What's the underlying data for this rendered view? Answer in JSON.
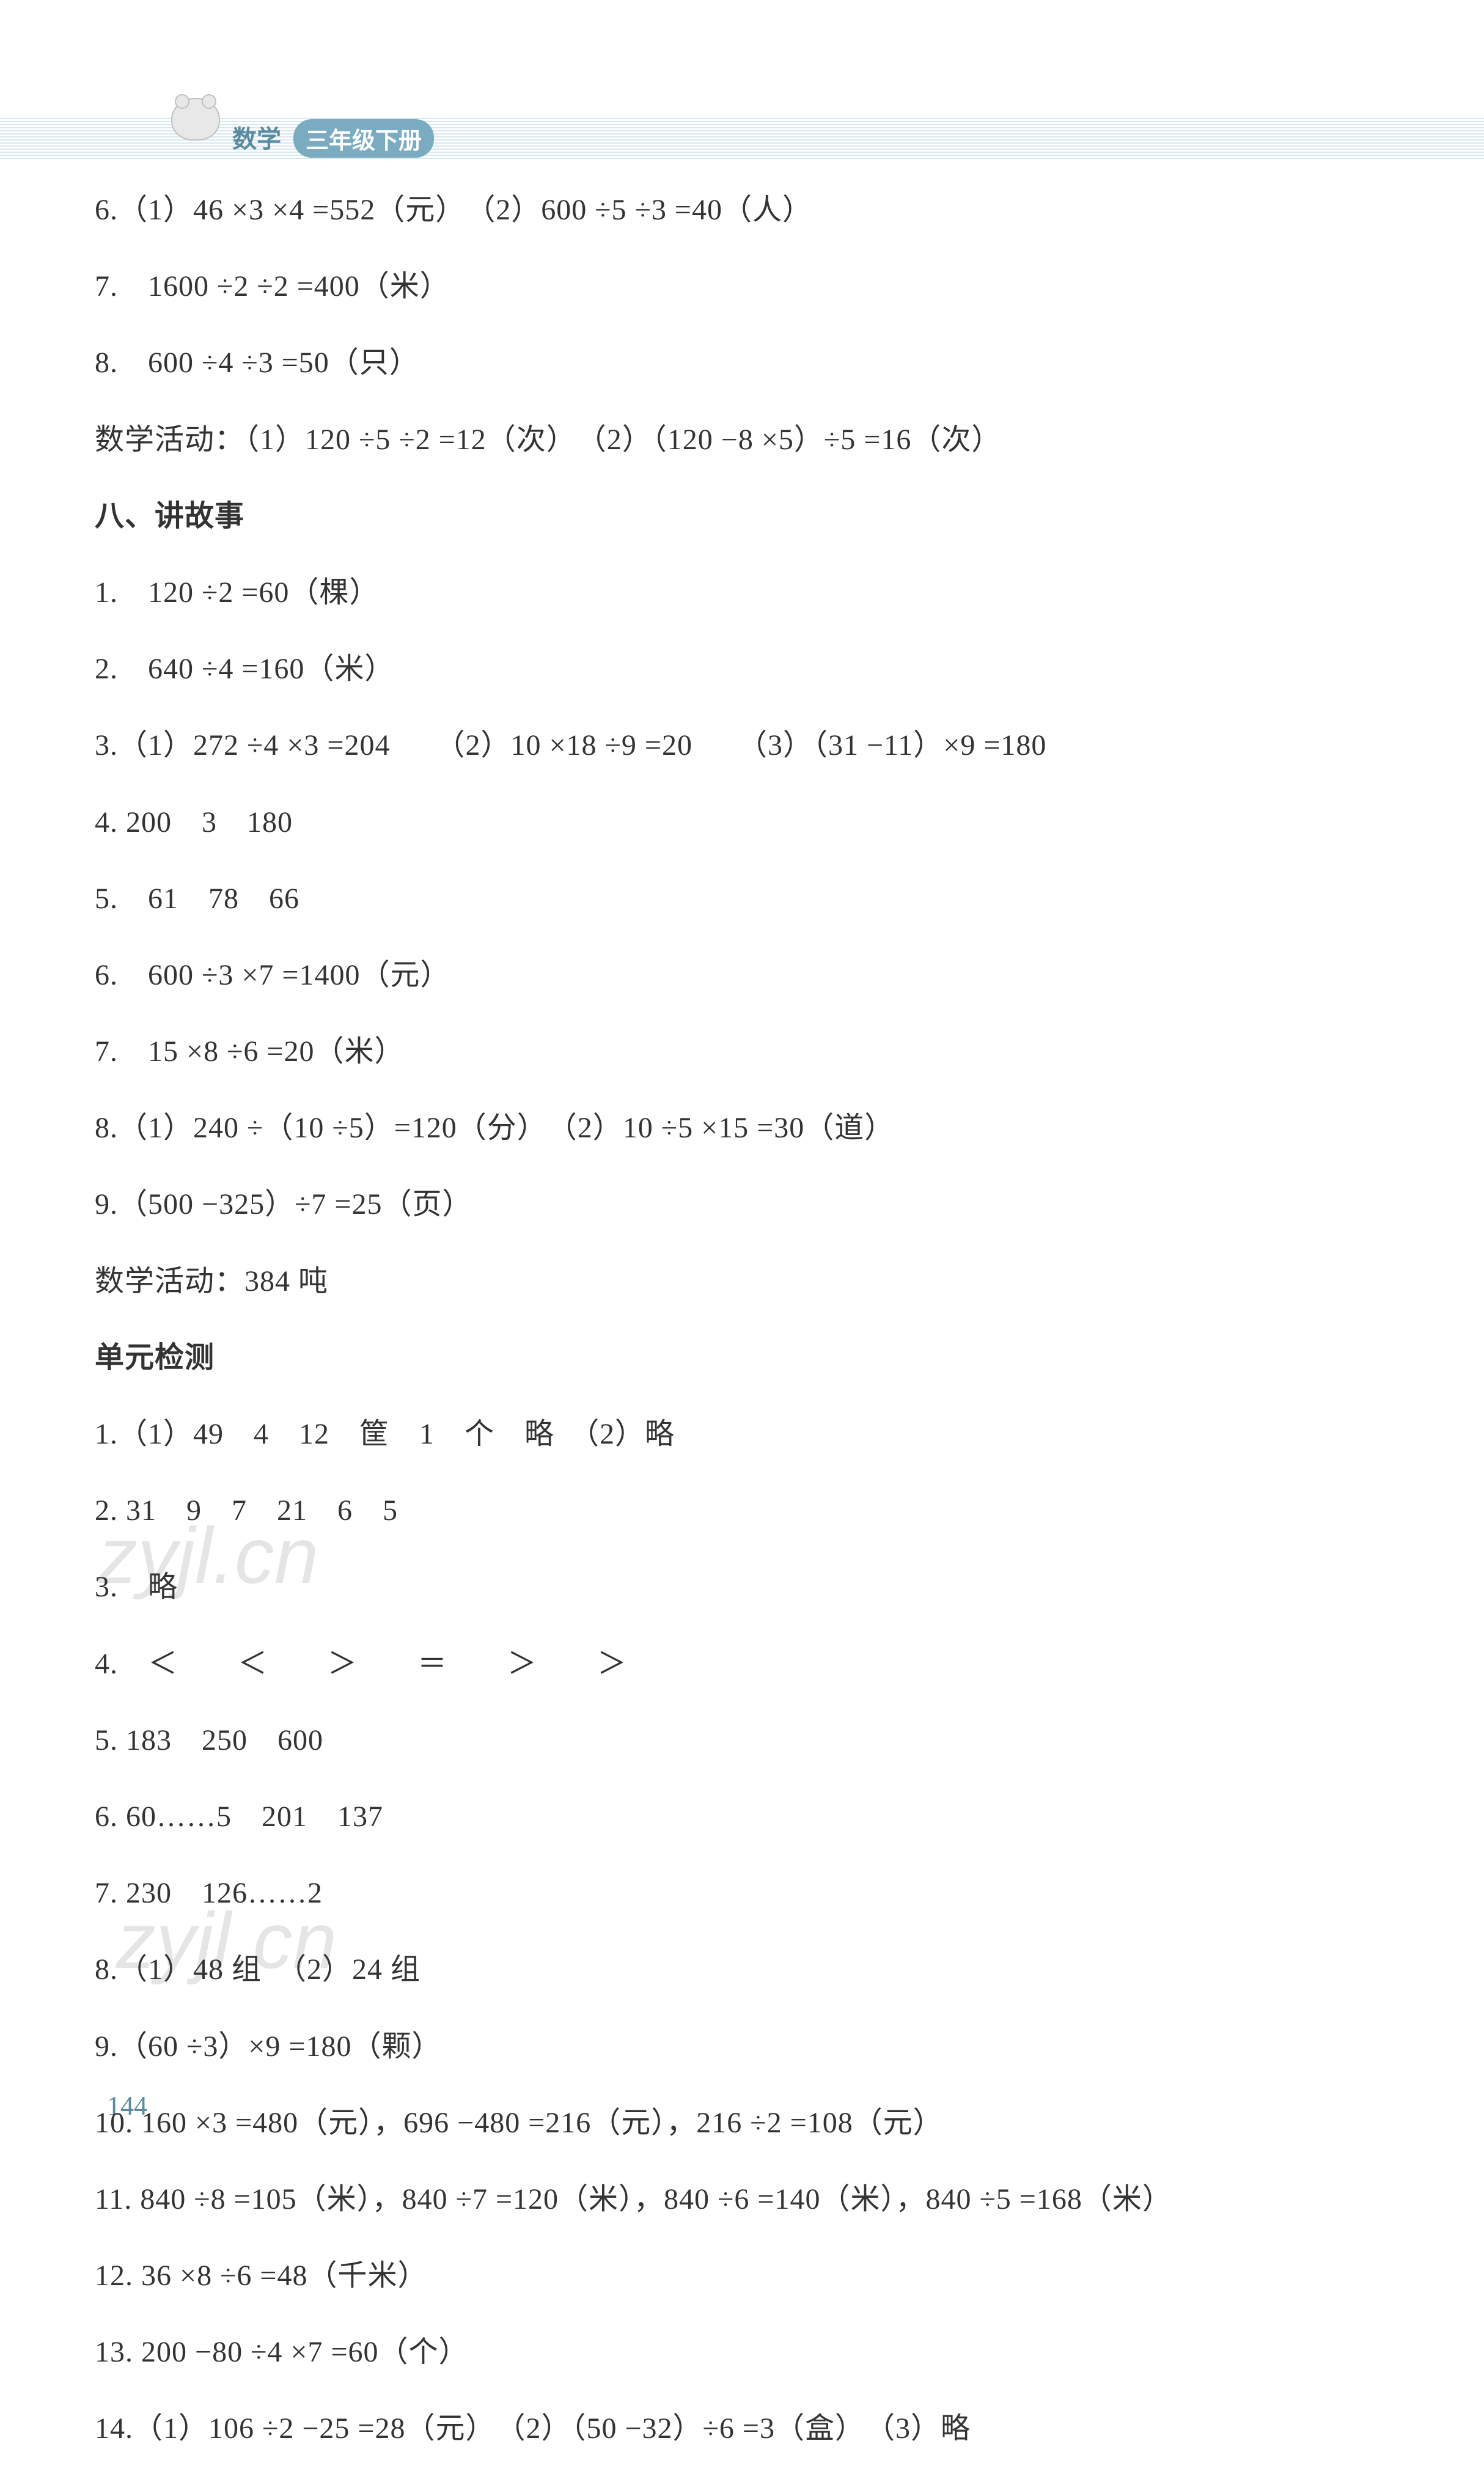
{
  "header": {
    "subject": "数学",
    "grade_badge": "三年级下册"
  },
  "watermark": "zyjl.cn",
  "page_number": "144",
  "lines": [
    {
      "text": "6.（1）46 ×3 ×4 =552（元）　（2）600 ÷5 ÷3 =40（人）",
      "bold": false
    },
    {
      "text": "7.　1600 ÷2 ÷2 =400（米）",
      "bold": false
    },
    {
      "text": "8.　600 ÷4 ÷3 =50（只）",
      "bold": false
    },
    {
      "text": "数学活动：（1）120 ÷5 ÷2 =12（次）　（2）（120 −8 ×5）÷5 =16（次）",
      "bold": false
    },
    {
      "text": "八、讲故事",
      "bold": true
    },
    {
      "text": "1.　120 ÷2 =60（棵）",
      "bold": false
    },
    {
      "text": "2.　640 ÷4 =160（米）",
      "bold": false
    },
    {
      "text": "3.（1）272 ÷4 ×3 =204　　（2）10 ×18 ÷9 =20　　（3）（31 −11）×9 =180",
      "bold": false
    },
    {
      "text": "4. 200　3　180",
      "bold": false
    },
    {
      "text": "5.　61　78　66",
      "bold": false
    },
    {
      "text": "6.　600 ÷3 ×7 =1400（元）",
      "bold": false
    },
    {
      "text": "7.　15 ×8 ÷6 =20（米）",
      "bold": false
    },
    {
      "text": "8.（1）240 ÷（10 ÷5）=120（分）　（2）10 ÷5 ×15 =30（道）",
      "bold": false
    },
    {
      "text": "9.（500 −325）÷7 =25（页）",
      "bold": false
    },
    {
      "text": "数学活动：384 吨",
      "bold": false
    },
    {
      "text": "单元检测",
      "bold": true
    },
    {
      "text": "1.（1）49　4　12　筐　1　个　略　（2）略",
      "bold": false
    },
    {
      "text": "2. 31　9　7　21　6　5",
      "bold": false
    },
    {
      "text": "3.　略",
      "bold": false
    },
    {
      "text": "4.　＜　　＜　　＞　　＝　　＞　　＞",
      "bold": false
    },
    {
      "text": "5. 183　250　600",
      "bold": false
    },
    {
      "text": "6. 60……5　201　137",
      "bold": false
    },
    {
      "text": "7. 230　126……2",
      "bold": false
    },
    {
      "text": "8.（1）48 组　（2）24 组",
      "bold": false
    },
    {
      "text": "9.（60 ÷3）×9 =180（颗）",
      "bold": false
    },
    {
      "text": "10. 160 ×3 =480（元），696 −480 =216（元），216 ÷2 =108（元）",
      "bold": false
    },
    {
      "text": "11. 840 ÷8 =105（米），840 ÷7 =120（米），840 ÷6 =140（米），840 ÷5 =168（米）",
      "bold": false
    },
    {
      "text": "12. 36 ×8 ÷6 =48（千米）",
      "bold": false
    },
    {
      "text": "13. 200 −80 ÷4 ×7 =60（个）",
      "bold": false
    },
    {
      "text": "14.（1）106 ÷2 −25 =28（元）　（2）（50 −32）÷6 =3（盒）　（3）略",
      "bold": false
    }
  ]
}
